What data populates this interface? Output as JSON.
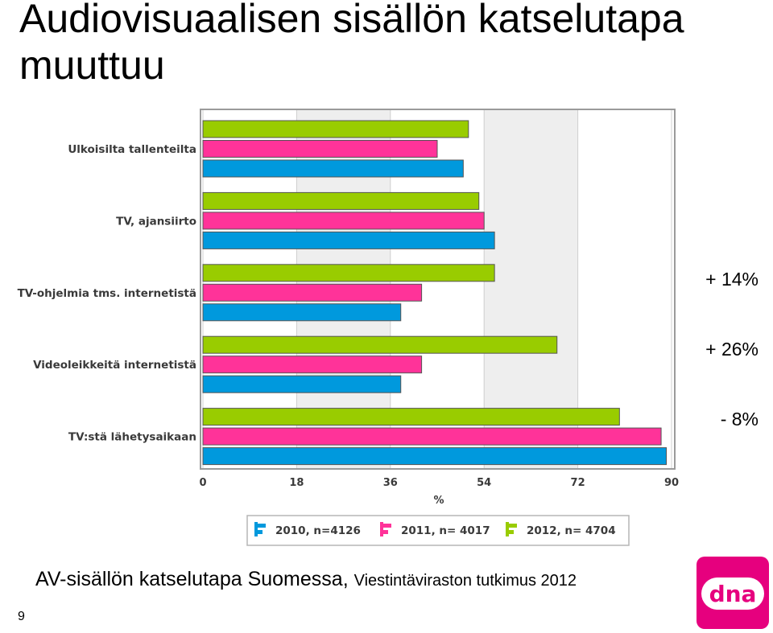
{
  "slide": {
    "title": "Audiovisuaalisen sisällön katselutapa muuttuu",
    "caption": "AV-sisällön katselutapa Suomessa,",
    "caption_source": "Viestintäviraston tutkimus 2012",
    "page_number": "9",
    "annotations": [
      "+ 14%",
      "+ 26%",
      "- 8%"
    ],
    "logo_text": "dna"
  },
  "chart_data": {
    "type": "bar",
    "orientation": "horizontal",
    "categories": [
      "Ulkoisilta tallenteilta",
      "TV, ajansiirto",
      "TV-ohjelmia tms. internetistä",
      "Videoleikkeitä internetistä",
      "TV:stä lähetysaikaan"
    ],
    "series": [
      {
        "name": "2012, n= 4704",
        "color": "#99cc00",
        "values": [
          51,
          53,
          56,
          68,
          80
        ]
      },
      {
        "name": "2011, n= 4017",
        "color": "#ff3399",
        "values": [
          45,
          54,
          42,
          42,
          88
        ]
      },
      {
        "name": "2010, n=4126",
        "color": "#0099dd",
        "values": [
          50,
          56,
          38,
          38,
          89
        ]
      }
    ],
    "legend_order": [
      "2010, n=4126",
      "2011, n= 4017",
      "2012, n= 4704"
    ],
    "xlabel": "%",
    "xlim": [
      0,
      90
    ],
    "xticks": [
      0,
      18,
      36,
      54,
      72,
      90
    ],
    "legend_position": "bottom",
    "grid": "alternating vertical bands"
  }
}
